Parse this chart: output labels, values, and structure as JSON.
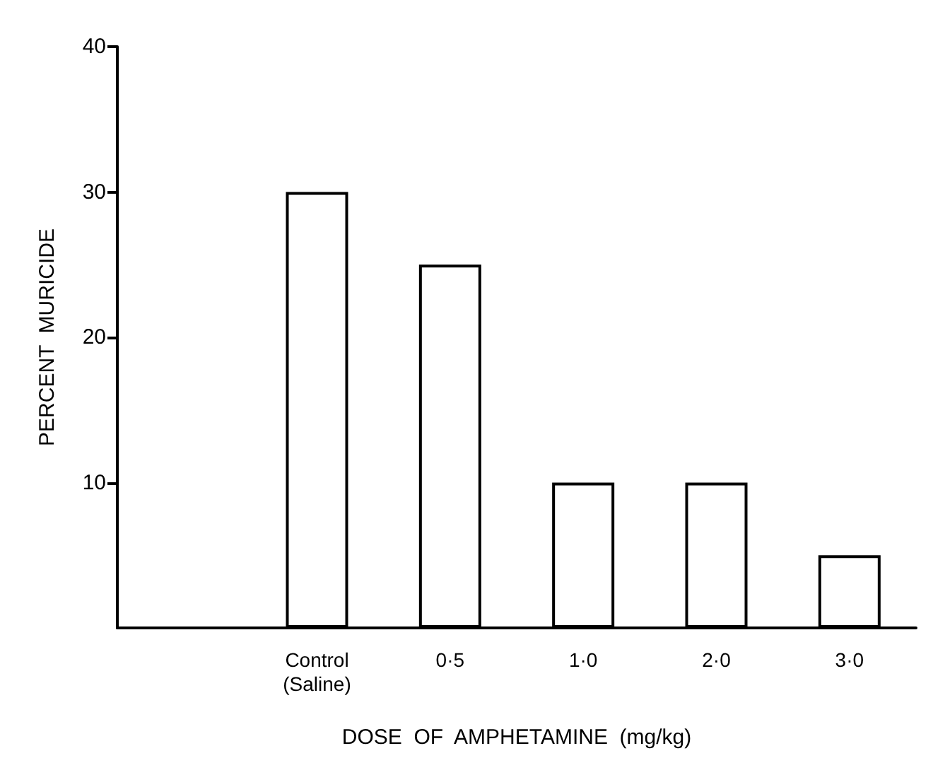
{
  "chart_data": {
    "type": "bar",
    "xlabel": "DOSE  OF  AMPHETAMINE  (mg/kg)",
    "ylabel": "PERCENT  MURICIDE",
    "categories": [
      null,
      "Control\n(Saline)",
      "0·5",
      "1·0",
      "2·0",
      "3·0"
    ],
    "values": [
      null,
      30,
      25,
      10,
      10,
      5
    ],
    "color": "#ffffff",
    "ylim": [
      0,
      40
    ],
    "yticks": [
      10,
      20,
      30,
      40
    ],
    "grid": false
  }
}
